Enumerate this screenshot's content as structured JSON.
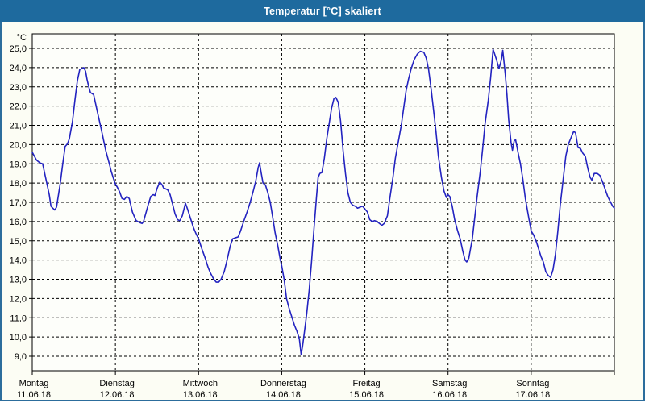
{
  "window": {
    "title": "Temperatur [°C] skaliert"
  },
  "colors": {
    "titlebar_bg": "#1e6a9e",
    "window_bg": "#fcfdf4",
    "frame_border": "#2c6d9c",
    "title_text": "#ffffff"
  },
  "chart_data": {
    "type": "line",
    "title": "Temperatur [°C] skaliert",
    "xlabel": "",
    "ylabel": "°C",
    "ylim": [
      9,
      25
    ],
    "x_hours_range": [
      0,
      168
    ],
    "grid": "dashed",
    "legend": "none",
    "y_ticks": [
      25,
      24,
      23,
      22,
      21,
      20,
      19,
      18,
      17,
      16,
      15,
      14,
      13,
      12,
      11,
      10,
      9
    ],
    "y_tick_labels": [
      "25,0",
      "24,0",
      "23,0",
      "22,0",
      "21,0",
      "20,0",
      "19,0",
      "18,0",
      "17,0",
      "16,0",
      "15,0",
      "14,0",
      "13,0",
      "12,0",
      "11,0",
      "10,0",
      "9,0"
    ],
    "categories": [
      {
        "day": "Montag",
        "date": "11.06.18"
      },
      {
        "day": "Dienstag",
        "date": "12.06.18"
      },
      {
        "day": "Mittwoch",
        "date": "13.06.18"
      },
      {
        "day": "Donnerstag",
        "date": "14.06.18"
      },
      {
        "day": "Freitag",
        "date": "15.06.18"
      },
      {
        "day": "Samstag",
        "date": "16.06.18"
      },
      {
        "day": "Sonntag",
        "date": "17.06.18"
      }
    ],
    "colors": {
      "plot_bg": "#fdfefa",
      "grid": "#000000",
      "axis": "#000000"
    },
    "series": [
      {
        "name": "Temperatur",
        "color": "#2323c0",
        "points": [
          [
            0,
            19.6
          ],
          [
            1.2,
            19.2
          ],
          [
            2.2,
            19.05
          ],
          [
            3.0,
            19.0
          ],
          [
            4.2,
            18.0
          ],
          [
            4.9,
            17.4
          ],
          [
            5.4,
            16.8
          ],
          [
            5.9,
            16.7
          ],
          [
            6.5,
            16.6
          ],
          [
            7.0,
            16.75
          ],
          [
            8.1,
            18.0
          ],
          [
            8.8,
            19.0
          ],
          [
            9.5,
            19.9
          ],
          [
            10.2,
            20.05
          ],
          [
            10.7,
            20.3
          ],
          [
            11.6,
            21.2
          ],
          [
            12.3,
            22.3
          ],
          [
            13.0,
            23.3
          ],
          [
            13.7,
            23.9
          ],
          [
            14.9,
            24.0
          ],
          [
            15.4,
            23.8
          ],
          [
            15.8,
            23.4
          ],
          [
            16.3,
            23.0
          ],
          [
            16.8,
            22.7
          ],
          [
            17.7,
            22.6
          ],
          [
            18.8,
            21.7
          ],
          [
            19.8,
            20.9
          ],
          [
            20.5,
            20.3
          ],
          [
            21.2,
            19.7
          ],
          [
            22.1,
            19.1
          ],
          [
            22.8,
            18.6
          ],
          [
            23.5,
            18.2
          ],
          [
            24.0,
            17.95
          ],
          [
            24.5,
            17.8
          ],
          [
            25.2,
            17.55
          ],
          [
            25.9,
            17.2
          ],
          [
            26.6,
            17.15
          ],
          [
            27.3,
            17.3
          ],
          [
            28.0,
            17.2
          ],
          [
            28.9,
            16.5
          ],
          [
            29.6,
            16.2
          ],
          [
            30.0,
            16.05
          ],
          [
            31.0,
            15.95
          ],
          [
            31.7,
            15.9
          ],
          [
            32.1,
            16.0
          ],
          [
            33.5,
            16.9
          ],
          [
            34.2,
            17.3
          ],
          [
            34.9,
            17.4
          ],
          [
            35.4,
            17.35
          ],
          [
            36.1,
            17.75
          ],
          [
            36.8,
            18.05
          ],
          [
            37.5,
            17.9
          ],
          [
            37.9,
            17.75
          ],
          [
            39.1,
            17.65
          ],
          [
            39.8,
            17.4
          ],
          [
            40.5,
            16.9
          ],
          [
            41.2,
            16.4
          ],
          [
            41.9,
            16.1
          ],
          [
            42.6,
            16.05
          ],
          [
            43.3,
            16.3
          ],
          [
            44.2,
            16.95
          ],
          [
            44.9,
            16.6
          ],
          [
            45.6,
            16.2
          ],
          [
            46.5,
            15.7
          ],
          [
            47.2,
            15.4
          ],
          [
            48.0,
            15.1
          ],
          [
            48.9,
            14.6
          ],
          [
            49.9,
            14.1
          ],
          [
            50.8,
            13.6
          ],
          [
            51.5,
            13.3
          ],
          [
            52.4,
            13.0
          ],
          [
            53.1,
            12.85
          ],
          [
            53.8,
            12.85
          ],
          [
            54.5,
            13.0
          ],
          [
            55.4,
            13.4
          ],
          [
            56.1,
            13.9
          ],
          [
            57.1,
            14.7
          ],
          [
            57.8,
            15.1
          ],
          [
            58.5,
            15.15
          ],
          [
            59.4,
            15.2
          ],
          [
            60.1,
            15.5
          ],
          [
            61.0,
            16.0
          ],
          [
            62.0,
            16.5
          ],
          [
            62.9,
            17.0
          ],
          [
            63.8,
            17.6
          ],
          [
            64.5,
            18.1
          ],
          [
            65.2,
            18.8
          ],
          [
            65.6,
            19.05
          ],
          [
            66.1,
            18.5
          ],
          [
            66.6,
            18.0
          ],
          [
            67.3,
            17.9
          ],
          [
            68.0,
            17.5
          ],
          [
            68.7,
            17.0
          ],
          [
            69.4,
            16.2
          ],
          [
            70.1,
            15.4
          ],
          [
            70.8,
            14.8
          ],
          [
            71.5,
            14.1
          ],
          [
            72.0,
            13.7
          ],
          [
            72.7,
            13.0
          ],
          [
            73.4,
            12.0
          ],
          [
            74.1,
            11.5
          ],
          [
            74.8,
            11.1
          ],
          [
            75.7,
            10.6
          ],
          [
            76.4,
            10.3
          ],
          [
            77.1,
            9.9
          ],
          [
            77.6,
            9.1
          ],
          [
            78.0,
            9.5
          ],
          [
            78.5,
            10.2
          ],
          [
            79.2,
            11.2
          ],
          [
            79.9,
            12.4
          ],
          [
            80.6,
            13.9
          ],
          [
            81.3,
            15.6
          ],
          [
            82.0,
            17.2
          ],
          [
            82.5,
            18.3
          ],
          [
            83.0,
            18.5
          ],
          [
            83.6,
            18.55
          ],
          [
            84.3,
            19.3
          ],
          [
            85.0,
            20.3
          ],
          [
            85.7,
            21.1
          ],
          [
            86.4,
            21.9
          ],
          [
            87.1,
            22.4
          ],
          [
            87.6,
            22.45
          ],
          [
            88.3,
            22.2
          ],
          [
            89.0,
            21.2
          ],
          [
            89.7,
            19.7
          ],
          [
            90.4,
            18.5
          ],
          [
            91.1,
            17.5
          ],
          [
            91.8,
            17.0
          ],
          [
            92.5,
            16.85
          ],
          [
            93.2,
            16.8
          ],
          [
            93.9,
            16.7
          ],
          [
            94.6,
            16.75
          ],
          [
            95.3,
            16.8
          ],
          [
            96.0,
            16.65
          ],
          [
            96.7,
            16.5
          ],
          [
            97.4,
            16.1
          ],
          [
            98.1,
            16.0
          ],
          [
            98.8,
            16.05
          ],
          [
            99.5,
            16.0
          ],
          [
            100.2,
            15.9
          ],
          [
            100.9,
            15.8
          ],
          [
            101.6,
            15.9
          ],
          [
            102.5,
            16.3
          ],
          [
            103.2,
            17.2
          ],
          [
            104.1,
            18.3
          ],
          [
            104.8,
            19.3
          ],
          [
            105.5,
            20.0
          ],
          [
            106.5,
            21.0
          ],
          [
            107.2,
            21.9
          ],
          [
            107.9,
            22.8
          ],
          [
            108.6,
            23.4
          ],
          [
            109.3,
            23.9
          ],
          [
            110.2,
            24.4
          ],
          [
            111.1,
            24.7
          ],
          [
            112.0,
            24.85
          ],
          [
            113.0,
            24.8
          ],
          [
            113.7,
            24.5
          ],
          [
            114.4,
            23.9
          ],
          [
            115.1,
            22.9
          ],
          [
            115.8,
            21.8
          ],
          [
            116.5,
            20.7
          ],
          [
            117.2,
            19.4
          ],
          [
            118.1,
            18.3
          ],
          [
            118.8,
            17.6
          ],
          [
            119.5,
            17.25
          ],
          [
            120.0,
            17.4
          ],
          [
            120.5,
            17.3
          ],
          [
            121.2,
            16.8
          ],
          [
            121.9,
            16.1
          ],
          [
            122.8,
            15.5
          ],
          [
            123.5,
            15.1
          ],
          [
            124.2,
            14.5
          ],
          [
            124.9,
            14.0
          ],
          [
            125.4,
            13.9
          ],
          [
            126.0,
            14.1
          ],
          [
            127.0,
            15.1
          ],
          [
            127.7,
            16.2
          ],
          [
            128.4,
            17.3
          ],
          [
            129.3,
            18.6
          ],
          [
            130.0,
            19.8
          ],
          [
            130.7,
            21.1
          ],
          [
            131.6,
            22.3
          ],
          [
            132.3,
            23.5
          ],
          [
            133.0,
            24.95
          ],
          [
            134.0,
            24.4
          ],
          [
            134.7,
            23.95
          ],
          [
            135.4,
            24.4
          ],
          [
            135.8,
            24.9
          ],
          [
            136.5,
            23.7
          ],
          [
            137.0,
            22.6
          ],
          [
            137.5,
            21.3
          ],
          [
            138.2,
            20.1
          ],
          [
            138.6,
            19.7
          ],
          [
            139.1,
            20.2
          ],
          [
            139.5,
            20.25
          ],
          [
            140.2,
            19.6
          ],
          [
            140.9,
            19.0
          ],
          [
            141.6,
            18.2
          ],
          [
            142.3,
            17.2
          ],
          [
            143.3,
            16.2
          ],
          [
            144.0,
            15.5
          ],
          [
            144.7,
            15.3
          ],
          [
            145.4,
            15.0
          ],
          [
            146.1,
            14.6
          ],
          [
            146.8,
            14.2
          ],
          [
            147.5,
            13.9
          ],
          [
            148.2,
            13.4
          ],
          [
            148.9,
            13.2
          ],
          [
            149.6,
            13.1
          ],
          [
            150.3,
            13.5
          ],
          [
            151.0,
            14.3
          ],
          [
            151.7,
            15.5
          ],
          [
            152.4,
            16.9
          ],
          [
            153.3,
            18.3
          ],
          [
            154.0,
            19.4
          ],
          [
            154.7,
            20.0
          ],
          [
            155.6,
            20.4
          ],
          [
            156.3,
            20.7
          ],
          [
            156.8,
            20.6
          ],
          [
            157.5,
            19.85
          ],
          [
            158.2,
            19.8
          ],
          [
            158.9,
            19.55
          ],
          [
            159.6,
            19.4
          ],
          [
            160.3,
            18.8
          ],
          [
            161.0,
            18.3
          ],
          [
            161.5,
            18.15
          ],
          [
            162.2,
            18.5
          ],
          [
            163.1,
            18.5
          ],
          [
            163.8,
            18.4
          ],
          [
            164.5,
            18.1
          ],
          [
            165.2,
            17.75
          ],
          [
            166.1,
            17.3
          ],
          [
            166.8,
            17.05
          ],
          [
            167.5,
            16.8
          ],
          [
            168.0,
            16.7
          ]
        ]
      }
    ]
  }
}
